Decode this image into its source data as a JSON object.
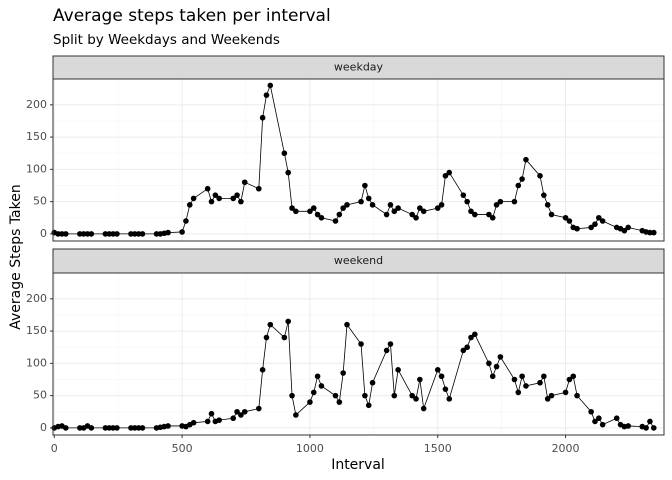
{
  "chart_data": {
    "type": "line",
    "title": "Average steps taken per interval",
    "subtitle": "Split by Weekdays and Weekends",
    "xlabel": "Interval",
    "ylabel": "Average Steps Taken",
    "color": "#000000",
    "grid": true,
    "xlim": [
      -5,
      2385
    ],
    "xticks": [
      0,
      500,
      1000,
      1500,
      2000
    ],
    "ylim": [
      -11,
      240
    ],
    "yticks": [
      0,
      50,
      100,
      150,
      200
    ],
    "x": [
      0,
      15,
      30,
      45,
      100,
      115,
      130,
      145,
      200,
      215,
      230,
      245,
      300,
      315,
      330,
      345,
      400,
      415,
      430,
      445,
      500,
      515,
      530,
      545,
      600,
      615,
      630,
      645,
      700,
      715,
      730,
      745,
      800,
      815,
      830,
      845,
      900,
      915,
      930,
      945,
      1000,
      1015,
      1030,
      1045,
      1100,
      1115,
      1130,
      1145,
      1200,
      1215,
      1230,
      1245,
      1300,
      1315,
      1330,
      1345,
      1400,
      1415,
      1430,
      1445,
      1500,
      1515,
      1530,
      1545,
      1600,
      1615,
      1630,
      1645,
      1700,
      1715,
      1730,
      1745,
      1800,
      1815,
      1830,
      1845,
      1900,
      1915,
      1930,
      1945,
      2000,
      2015,
      2030,
      2045,
      2100,
      2115,
      2130,
      2145,
      2200,
      2215,
      2230,
      2245,
      2300,
      2315,
      2330,
      2345
    ],
    "facets": [
      {
        "name": "weekday",
        "values": [
          2,
          0,
          0,
          0,
          0,
          0,
          0,
          0,
          0,
          0,
          0,
          0,
          0,
          0,
          0,
          0,
          0,
          0,
          1,
          2,
          3,
          20,
          45,
          55,
          70,
          50,
          60,
          55,
          55,
          60,
          50,
          80,
          70,
          180,
          215,
          230,
          125,
          95,
          40,
          35,
          35,
          40,
          30,
          25,
          20,
          30,
          40,
          45,
          50,
          75,
          55,
          45,
          30,
          45,
          35,
          40,
          30,
          25,
          40,
          35,
          40,
          45,
          90,
          95,
          60,
          50,
          35,
          30,
          30,
          25,
          45,
          50,
          50,
          75,
          85,
          115,
          90,
          60,
          45,
          30,
          25,
          20,
          10,
          8,
          10,
          15,
          25,
          20,
          10,
          8,
          5,
          10,
          5,
          3,
          2,
          2
        ]
      },
      {
        "name": "weekend",
        "values": [
          0,
          2,
          3,
          0,
          0,
          0,
          3,
          0,
          0,
          0,
          0,
          0,
          0,
          0,
          0,
          0,
          0,
          1,
          2,
          3,
          3,
          2,
          5,
          8,
          10,
          22,
          10,
          12,
          15,
          25,
          20,
          25,
          30,
          90,
          140,
          160,
          140,
          165,
          50,
          20,
          40,
          55,
          80,
          65,
          50,
          40,
          85,
          160,
          130,
          50,
          35,
          70,
          120,
          130,
          50,
          90,
          50,
          45,
          75,
          30,
          90,
          80,
          60,
          45,
          120,
          125,
          140,
          145,
          100,
          80,
          95,
          110,
          75,
          55,
          80,
          65,
          70,
          80,
          45,
          50,
          55,
          75,
          80,
          50,
          25,
          10,
          15,
          5,
          15,
          5,
          2,
          3,
          2,
          0,
          10,
          0
        ]
      }
    ]
  }
}
